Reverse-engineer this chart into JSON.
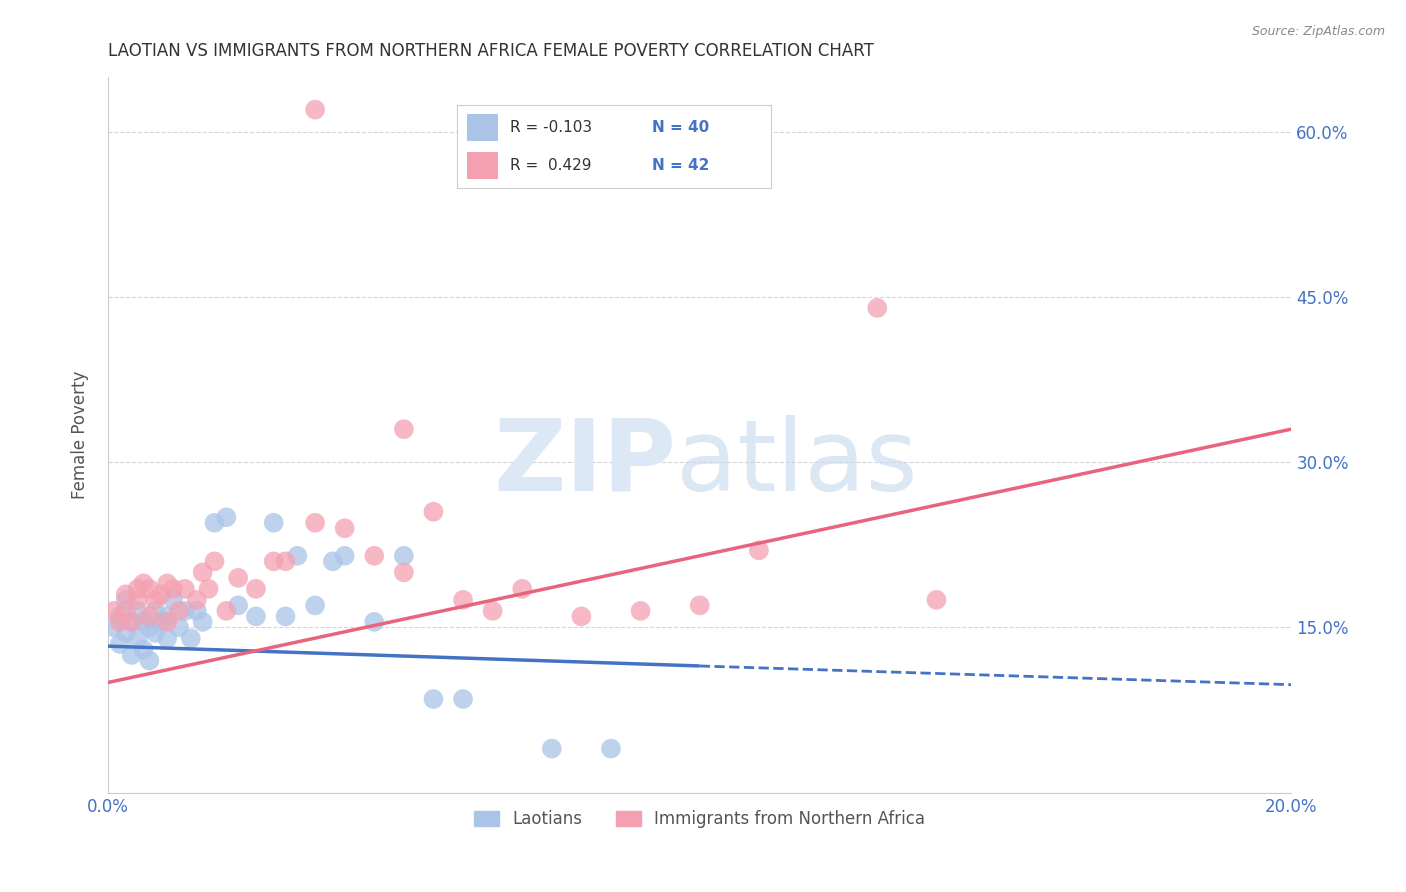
{
  "title": "LAOTIAN VS IMMIGRANTS FROM NORTHERN AFRICA FEMALE POVERTY CORRELATION CHART",
  "source": "Source: ZipAtlas.com",
  "ylabel": "Female Poverty",
  "xlim": [
    0.0,
    0.2
  ],
  "ylim": [
    0.0,
    0.65
  ],
  "yticks": [
    0.0,
    0.15,
    0.3,
    0.45,
    0.6
  ],
  "ytick_labels": [
    "",
    "15.0%",
    "30.0%",
    "45.0%",
    "60.0%"
  ],
  "xticks": [
    0.0,
    0.05,
    0.1,
    0.15,
    0.2
  ],
  "xtick_labels": [
    "0.0%",
    "",
    "",
    "",
    "20.0%"
  ],
  "grid_color": "#cccccc",
  "background_color": "#ffffff",
  "legend_r1": "R = -0.103",
  "legend_n1": "N = 40",
  "legend_r2": "R =  0.429",
  "legend_n2": "N = 42",
  "series1_label": "Laotians",
  "series2_label": "Immigrants from Northern Africa",
  "series1_color": "#aac4e8",
  "series2_color": "#f4a0b0",
  "series1_line_color": "#4472c4",
  "series2_line_color": "#e8647d",
  "tick_label_color": "#4472c4",
  "title_color": "#333333",
  "laotian_x": [
    0.001,
    0.002,
    0.002,
    0.003,
    0.003,
    0.004,
    0.004,
    0.005,
    0.005,
    0.006,
    0.006,
    0.007,
    0.007,
    0.008,
    0.008,
    0.009,
    0.01,
    0.01,
    0.011,
    0.012,
    0.013,
    0.014,
    0.015,
    0.016,
    0.018,
    0.02,
    0.022,
    0.025,
    0.028,
    0.03,
    0.032,
    0.035,
    0.038,
    0.04,
    0.045,
    0.05,
    0.055,
    0.06,
    0.075,
    0.085
  ],
  "laotian_y": [
    0.15,
    0.135,
    0.16,
    0.145,
    0.175,
    0.125,
    0.155,
    0.14,
    0.165,
    0.13,
    0.155,
    0.12,
    0.15,
    0.145,
    0.165,
    0.155,
    0.14,
    0.16,
    0.175,
    0.15,
    0.165,
    0.14,
    0.165,
    0.155,
    0.245,
    0.25,
    0.17,
    0.16,
    0.245,
    0.16,
    0.215,
    0.17,
    0.21,
    0.215,
    0.155,
    0.215,
    0.085,
    0.085,
    0.04,
    0.04
  ],
  "africa_x": [
    0.001,
    0.002,
    0.003,
    0.003,
    0.004,
    0.005,
    0.005,
    0.006,
    0.007,
    0.007,
    0.008,
    0.009,
    0.01,
    0.01,
    0.011,
    0.012,
    0.013,
    0.015,
    0.016,
    0.017,
    0.018,
    0.02,
    0.022,
    0.025,
    0.028,
    0.03,
    0.035,
    0.04,
    0.045,
    0.05,
    0.055,
    0.06,
    0.065,
    0.07,
    0.08,
    0.09,
    0.1,
    0.11,
    0.13,
    0.14,
    0.05,
    0.035
  ],
  "africa_y": [
    0.165,
    0.155,
    0.165,
    0.18,
    0.155,
    0.175,
    0.185,
    0.19,
    0.185,
    0.16,
    0.175,
    0.18,
    0.155,
    0.19,
    0.185,
    0.165,
    0.185,
    0.175,
    0.2,
    0.185,
    0.21,
    0.165,
    0.195,
    0.185,
    0.21,
    0.21,
    0.245,
    0.24,
    0.215,
    0.2,
    0.255,
    0.175,
    0.165,
    0.185,
    0.16,
    0.165,
    0.17,
    0.22,
    0.44,
    0.175,
    0.33,
    0.62
  ]
}
